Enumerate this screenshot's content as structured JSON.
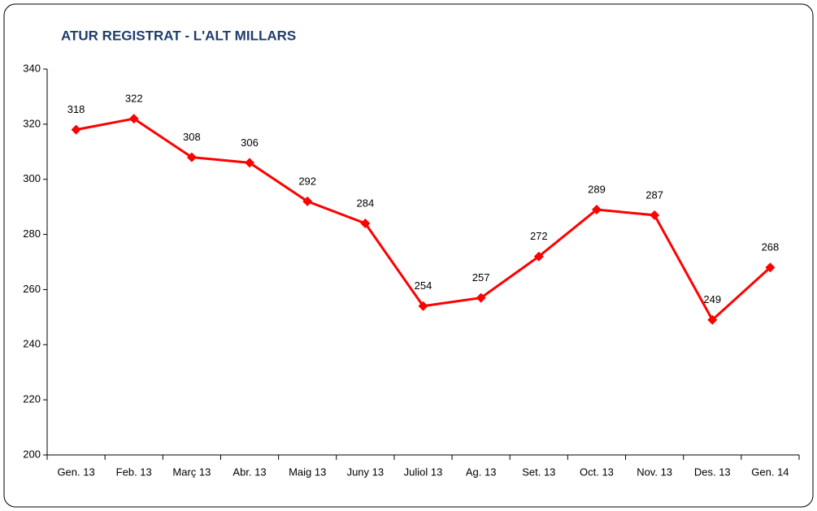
{
  "chart_data": {
    "type": "line",
    "title": "ATUR REGISTRAT - L'ALT MILLARS",
    "categories": [
      "Gen. 13",
      "Feb. 13",
      "Març 13",
      "Abr. 13",
      "Maig 13",
      "Juny 13",
      "Juliol 13",
      "Ag. 13",
      "Set. 13",
      "Oct. 13",
      "Nov. 13",
      "Des. 13",
      "Gen. 14"
    ],
    "values": [
      318,
      322,
      308,
      306,
      292,
      284,
      254,
      257,
      272,
      289,
      287,
      249,
      268
    ],
    "color": "#ff0000",
    "ylim": [
      200,
      340
    ],
    "yticks": [
      200,
      220,
      240,
      260,
      280,
      300,
      320,
      340
    ],
    "grid": false
  }
}
